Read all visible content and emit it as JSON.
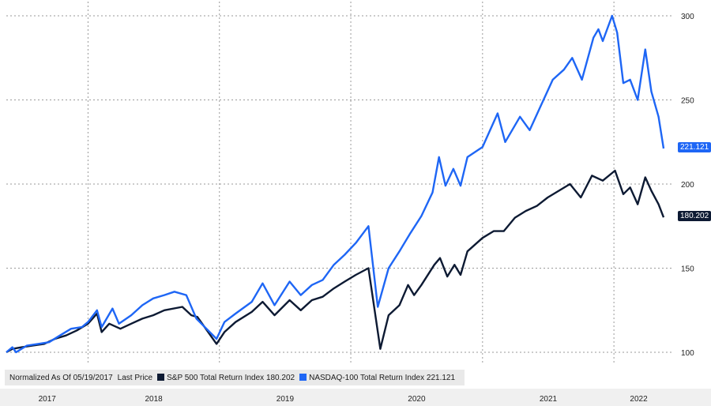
{
  "chart_data": {
    "type": "line",
    "legend": {
      "prefix": "Normalized As Of 05/19/2017",
      "field": "Last Price"
    },
    "x_ticks": [
      "2017",
      "2018",
      "2019",
      "2020",
      "2021",
      "2022"
    ],
    "y_ticks": [
      100,
      150,
      200,
      250,
      300
    ],
    "ylim": [
      80,
      305
    ],
    "grid": true,
    "series": [
      {
        "name": "S&P 500 Total Return Index",
        "last_value_label": "180.202",
        "color": "#0d1a33",
        "points": [
          [
            "2017-05-19",
            100
          ],
          [
            "2017-06-05",
            102
          ],
          [
            "2017-07-01",
            103
          ],
          [
            "2017-08-01",
            104
          ],
          [
            "2017-09-01",
            105
          ],
          [
            "2017-10-01",
            108
          ],
          [
            "2017-11-01",
            110
          ],
          [
            "2017-12-01",
            113
          ],
          [
            "2018-01-01",
            117
          ],
          [
            "2018-01-26",
            123
          ],
          [
            "2018-02-08",
            112
          ],
          [
            "2018-03-01",
            117
          ],
          [
            "2018-04-01",
            114
          ],
          [
            "2018-05-01",
            117
          ],
          [
            "2018-06-01",
            120
          ],
          [
            "2018-07-01",
            122
          ],
          [
            "2018-08-01",
            125
          ],
          [
            "2018-09-20",
            127
          ],
          [
            "2018-10-15",
            122
          ],
          [
            "2018-11-01",
            121
          ],
          [
            "2018-12-24",
            105
          ],
          [
            "2019-01-15",
            112
          ],
          [
            "2019-02-15",
            118
          ],
          [
            "2019-04-01",
            124
          ],
          [
            "2019-05-01",
            130
          ],
          [
            "2019-06-03",
            122
          ],
          [
            "2019-07-15",
            131
          ],
          [
            "2019-08-15",
            125
          ],
          [
            "2019-09-15",
            131
          ],
          [
            "2019-10-15",
            133
          ],
          [
            "2019-11-15",
            138
          ],
          [
            "2019-12-15",
            142
          ],
          [
            "2020-01-15",
            146
          ],
          [
            "2020-02-19",
            150
          ],
          [
            "2020-03-23",
            102
          ],
          [
            "2020-04-15",
            122
          ],
          [
            "2020-05-15",
            128
          ],
          [
            "2020-06-08",
            140
          ],
          [
            "2020-06-25",
            134
          ],
          [
            "2020-07-15",
            140
          ],
          [
            "2020-08-20",
            152
          ],
          [
            "2020-09-05",
            156
          ],
          [
            "2020-09-25",
            145
          ],
          [
            "2020-10-15",
            152
          ],
          [
            "2020-11-01",
            146
          ],
          [
            "2020-11-20",
            160
          ],
          [
            "2021-01-01",
            168
          ],
          [
            "2021-02-01",
            172
          ],
          [
            "2021-03-01",
            172
          ],
          [
            "2021-04-01",
            180
          ],
          [
            "2021-05-01",
            184
          ],
          [
            "2021-06-01",
            187
          ],
          [
            "2021-07-01",
            192
          ],
          [
            "2021-08-01",
            196
          ],
          [
            "2021-09-01",
            200
          ],
          [
            "2021-10-01",
            192
          ],
          [
            "2021-11-01",
            205
          ],
          [
            "2021-12-01",
            202
          ],
          [
            "2022-01-04",
            208
          ],
          [
            "2022-01-27",
            194
          ],
          [
            "2022-02-15",
            198
          ],
          [
            "2022-03-08",
            188
          ],
          [
            "2022-03-29",
            204
          ],
          [
            "2022-04-15",
            196
          ],
          [
            "2022-05-05",
            188
          ],
          [
            "2022-05-19",
            180.202
          ]
        ]
      },
      {
        "name": "NASDAQ-100 Total Return Index",
        "last_value_label": "221.121",
        "color": "#1e66f5",
        "points": [
          [
            "2017-05-19",
            100
          ],
          [
            "2017-06-05",
            103
          ],
          [
            "2017-06-15",
            100
          ],
          [
            "2017-07-15",
            104
          ],
          [
            "2017-08-15",
            105
          ],
          [
            "2017-09-15",
            106
          ],
          [
            "2017-10-15",
            110
          ],
          [
            "2017-11-15",
            114
          ],
          [
            "2017-12-15",
            115
          ],
          [
            "2018-01-01",
            118
          ],
          [
            "2018-01-26",
            125
          ],
          [
            "2018-02-08",
            115
          ],
          [
            "2018-03-10",
            126
          ],
          [
            "2018-03-28",
            117
          ],
          [
            "2018-05-01",
            122
          ],
          [
            "2018-06-01",
            128
          ],
          [
            "2018-07-01",
            132
          ],
          [
            "2018-08-01",
            134
          ],
          [
            "2018-08-29",
            136
          ],
          [
            "2018-10-01",
            134
          ],
          [
            "2018-10-29",
            120
          ],
          [
            "2018-12-24",
            108
          ],
          [
            "2019-01-15",
            118
          ],
          [
            "2019-02-15",
            123
          ],
          [
            "2019-04-01",
            130
          ],
          [
            "2019-05-01",
            141
          ],
          [
            "2019-06-03",
            128
          ],
          [
            "2019-07-15",
            142
          ],
          [
            "2019-08-15",
            134
          ],
          [
            "2019-09-15",
            140
          ],
          [
            "2019-10-15",
            143
          ],
          [
            "2019-11-15",
            152
          ],
          [
            "2019-12-15",
            158
          ],
          [
            "2020-01-15",
            165
          ],
          [
            "2020-02-19",
            175
          ],
          [
            "2020-03-16",
            127
          ],
          [
            "2020-04-15",
            150
          ],
          [
            "2020-05-15",
            160
          ],
          [
            "2020-06-15",
            171
          ],
          [
            "2020-07-15",
            181
          ],
          [
            "2020-08-15",
            195
          ],
          [
            "2020-09-02",
            216
          ],
          [
            "2020-09-20",
            199
          ],
          [
            "2020-10-12",
            209
          ],
          [
            "2020-11-01",
            199
          ],
          [
            "2020-11-20",
            216
          ],
          [
            "2021-01-01",
            222
          ],
          [
            "2021-02-12",
            242
          ],
          [
            "2021-03-05",
            225
          ],
          [
            "2021-04-15",
            240
          ],
          [
            "2021-05-12",
            232
          ],
          [
            "2021-06-15",
            248
          ],
          [
            "2021-07-15",
            262
          ],
          [
            "2021-08-15",
            268
          ],
          [
            "2021-09-07",
            275
          ],
          [
            "2021-10-04",
            262
          ],
          [
            "2021-11-05",
            287
          ],
          [
            "2021-11-19",
            292
          ],
          [
            "2021-12-01",
            285
          ],
          [
            "2021-12-27",
            300
          ],
          [
            "2022-01-10",
            290
          ],
          [
            "2022-01-27",
            260
          ],
          [
            "2022-02-15",
            262
          ],
          [
            "2022-03-08",
            250
          ],
          [
            "2022-03-29",
            280
          ],
          [
            "2022-04-15",
            255
          ],
          [
            "2022-05-05",
            240
          ],
          [
            "2022-05-19",
            221.121
          ]
        ]
      }
    ]
  }
}
